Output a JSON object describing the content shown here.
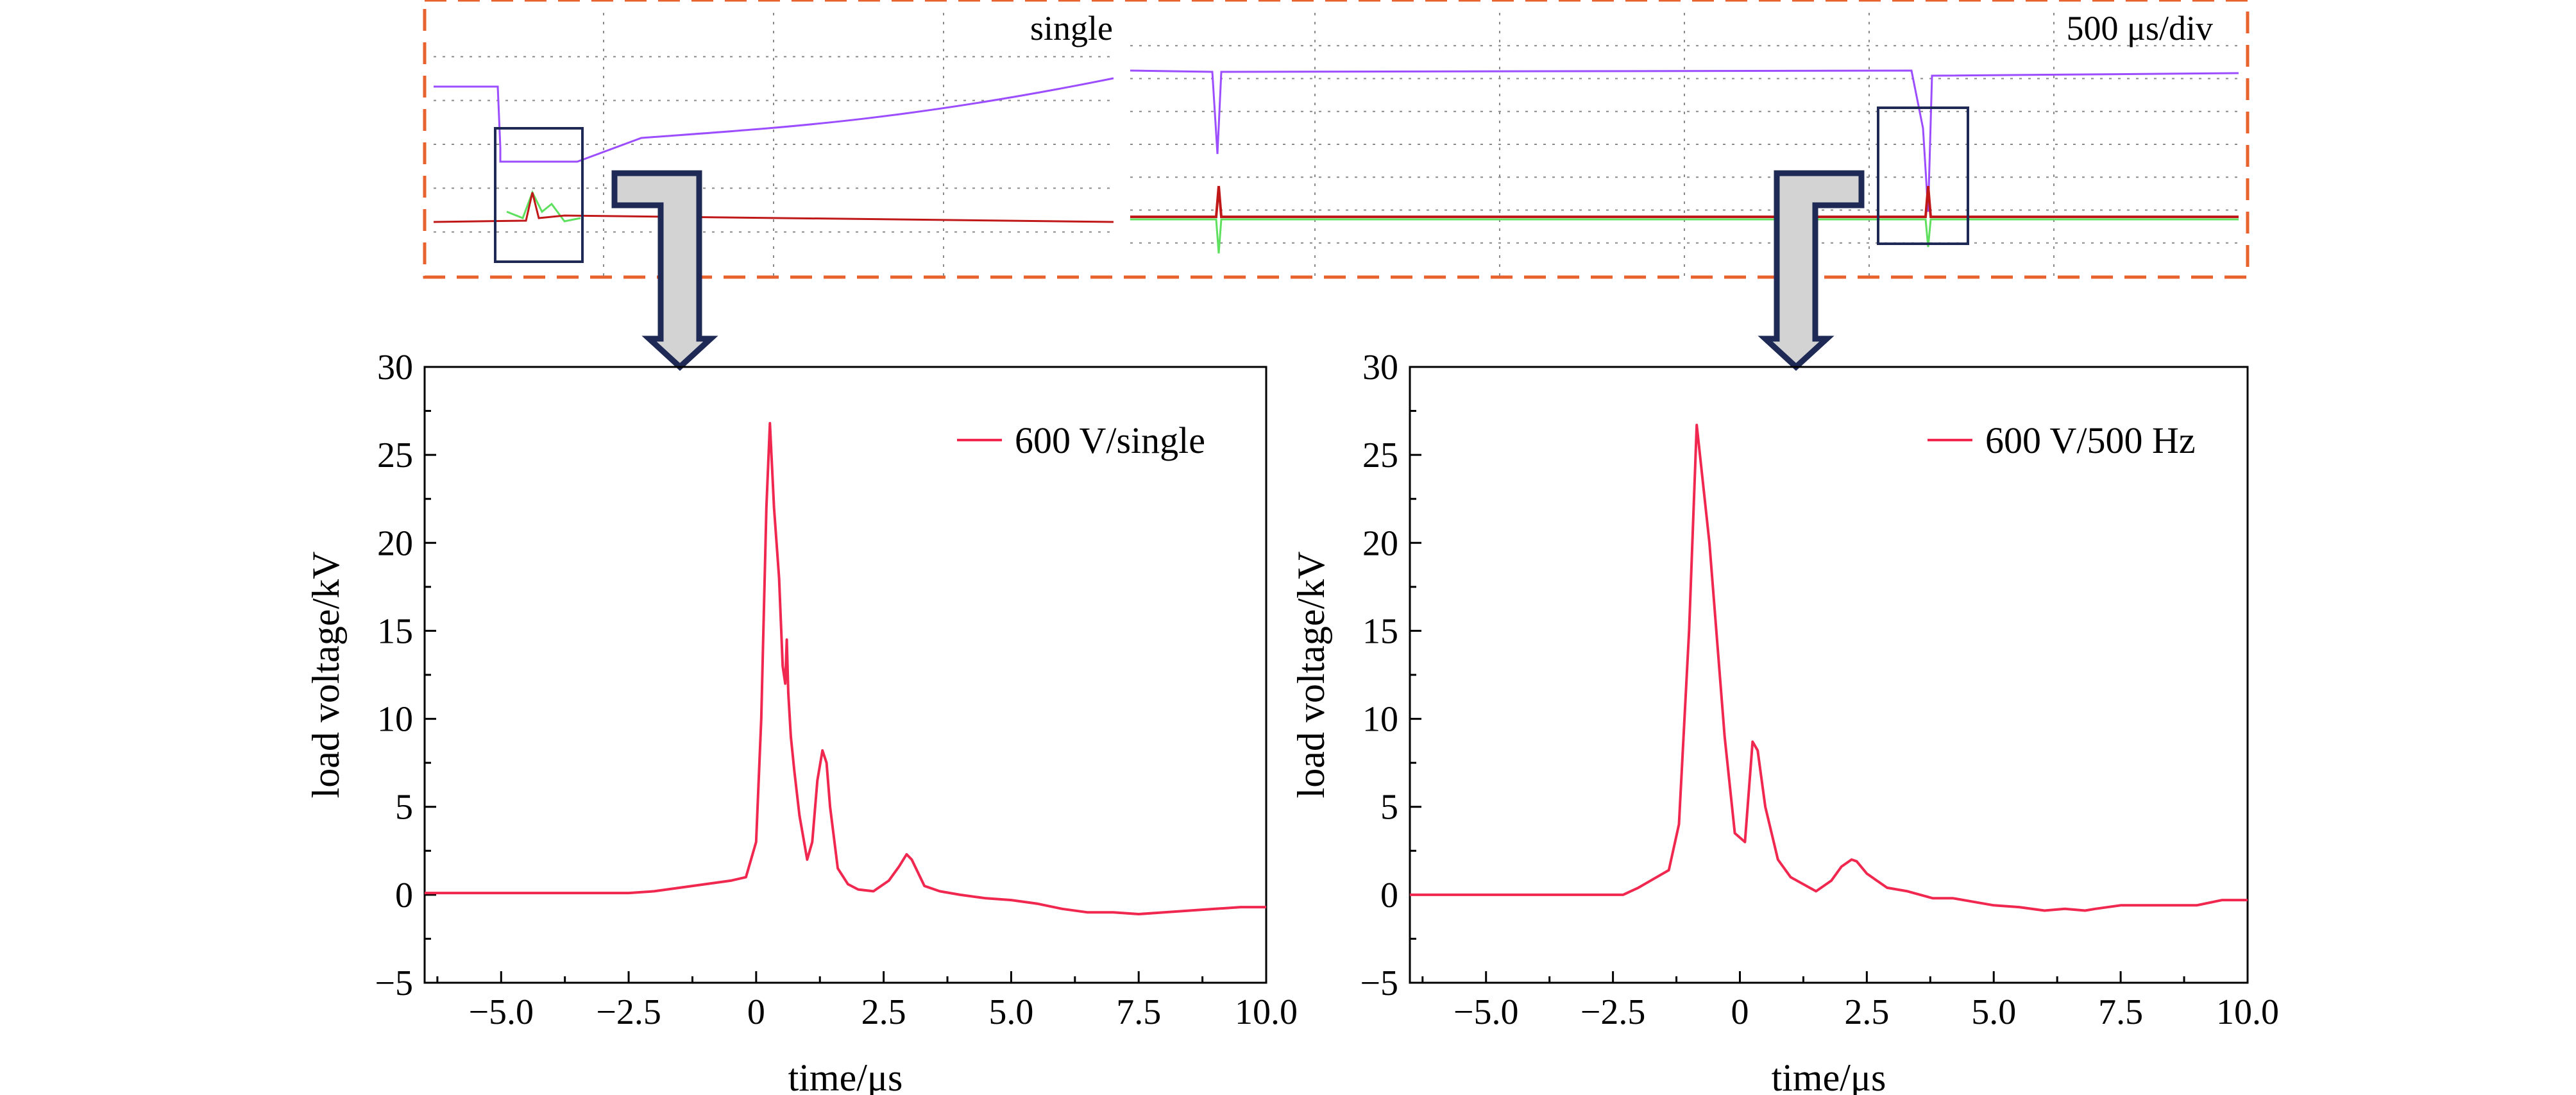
{
  "colors": {
    "trace": "#f0284f",
    "frame_dash": "#e8622e",
    "zoom_box": "#1e2a55",
    "arrow_fill": "#d3d3d3",
    "arrow_stroke": "#1e2a55",
    "scope_purple": "#9b4dff",
    "scope_red": "#c01818",
    "scope_green": "#5ee05e",
    "scope_grid": "#8a8a8a"
  },
  "scope": {
    "left_label": "single",
    "right_label": "500 μs/div"
  },
  "chart_data": [
    {
      "type": "line",
      "xlabel": "time/μs",
      "ylabel": "load voltage/kV",
      "xlim": [
        -6.5,
        10.0
      ],
      "ylim": [
        -5,
        30
      ],
      "xticks": [
        -5.0,
        -2.5,
        0,
        2.5,
        5.0,
        7.5,
        10.0
      ],
      "xtick_labels": [
        "−5.0",
        "−2.5",
        "0",
        "2.5",
        "5.0",
        "7.5",
        "10.0"
      ],
      "yticks": [
        -5,
        0,
        5,
        10,
        15,
        20,
        25,
        30
      ],
      "ytick_labels": [
        "−5",
        "0",
        "5",
        "10",
        "15",
        "20",
        "25",
        "30"
      ],
      "legend_position": "top-right",
      "series": [
        {
          "name": "600 V/single",
          "x": [
            -6.5,
            -3.0,
            -2.5,
            -2.0,
            -1.5,
            -1.0,
            -0.5,
            -0.2,
            0.0,
            0.1,
            0.2,
            0.27,
            0.35,
            0.45,
            0.52,
            0.57,
            0.6,
            0.63,
            0.68,
            0.75,
            0.85,
            1.0,
            1.1,
            1.2,
            1.3,
            1.38,
            1.45,
            1.6,
            1.8,
            2.0,
            2.3,
            2.6,
            2.8,
            2.95,
            3.05,
            3.3,
            3.6,
            4.0,
            4.5,
            5.0,
            5.5,
            6.0,
            6.5,
            7.0,
            7.5,
            8.0,
            8.5,
            9.0,
            9.5,
            10.0
          ],
          "y": [
            0.1,
            0.1,
            0.1,
            0.2,
            0.4,
            0.6,
            0.8,
            1.0,
            3.0,
            10.0,
            22.0,
            26.8,
            22.0,
            18.0,
            13.0,
            12.0,
            14.5,
            11.5,
            9.0,
            7.0,
            4.5,
            2.0,
            3.0,
            6.5,
            8.2,
            7.5,
            5.0,
            1.5,
            0.6,
            0.3,
            0.2,
            0.8,
            1.6,
            2.3,
            2.0,
            0.5,
            0.2,
            0.0,
            -0.2,
            -0.3,
            -0.5,
            -0.8,
            -1.0,
            -1.0,
            -1.1,
            -1.0,
            -0.9,
            -0.8,
            -0.7,
            -0.7
          ]
        },
        {
          "name": "600 V/500 Hz",
          "x": [
            -6.5,
            -3.0,
            -2.3,
            -2.0,
            -1.7,
            -1.4,
            -1.2,
            -1.0,
            -0.85,
            -0.6,
            -0.3,
            -0.1,
            0.1,
            0.25,
            0.35,
            0.5,
            0.75,
            1.0,
            1.5,
            1.8,
            2.0,
            2.2,
            2.3,
            2.5,
            2.9,
            3.3,
            3.8,
            4.2,
            4.6,
            5.0,
            5.5,
            6.0,
            6.4,
            6.8,
            7.0,
            7.5,
            8.0,
            8.5,
            9.0,
            9.5,
            10.0
          ],
          "y": [
            0.0,
            0.0,
            0.0,
            0.4,
            0.9,
            1.4,
            4.0,
            15.0,
            26.7,
            20.0,
            9.0,
            3.5,
            3.0,
            8.7,
            8.2,
            5.0,
            2.0,
            1.0,
            0.2,
            0.8,
            1.6,
            2.0,
            1.9,
            1.2,
            0.4,
            0.2,
            -0.2,
            -0.2,
            -0.4,
            -0.6,
            -0.7,
            -0.9,
            -0.8,
            -0.9,
            -0.8,
            -0.6,
            -0.6,
            -0.6,
            -0.6,
            -0.3,
            -0.3
          ]
        }
      ]
    }
  ]
}
